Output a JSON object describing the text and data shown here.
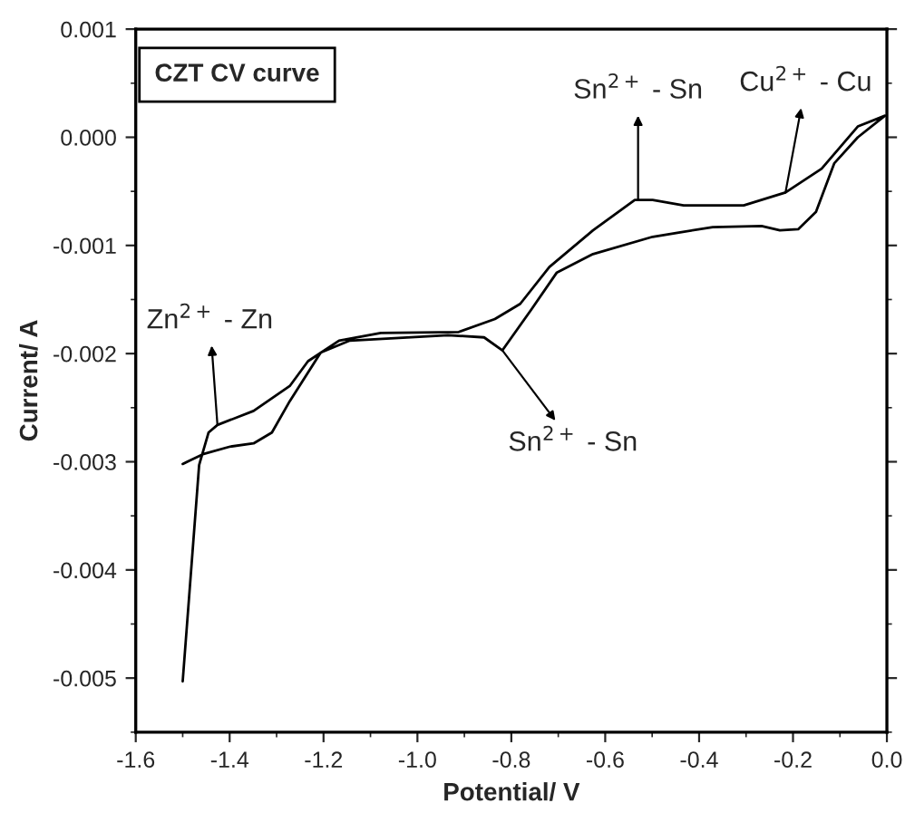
{
  "chart_data": {
    "type": "line",
    "xlabel": "Potential/ V",
    "ylabel": "Current/ A",
    "series": [
      {
        "color": "#000000",
        "x": [
          -1.5,
          -1.465,
          -1.445,
          -1.426,
          -1.349,
          -1.272,
          -1.233,
          -1.167,
          -1.078,
          -0.912,
          -0.835,
          -0.781,
          -0.719,
          -0.626,
          -0.537,
          -0.499,
          -0.433,
          -0.305,
          -0.216,
          -0.139,
          -0.062,
          -0.004,
          -0.062,
          -0.112,
          -0.151,
          -0.189,
          -0.228,
          -0.267,
          -0.371,
          -0.499,
          -0.626,
          -0.703,
          -0.757,
          -0.819,
          -0.858,
          -0.935,
          -1.144,
          -1.206,
          -1.272,
          -1.31,
          -1.349,
          -1.399,
          -1.457,
          -1.5
        ],
        "values": [
          -0.00503,
          -0.00303,
          -0.00273,
          -0.00266,
          -0.00253,
          -0.0023,
          -0.00207,
          -0.00188,
          -0.00181,
          -0.0018,
          -0.00168,
          -0.00154,
          -0.0012,
          -0.00086,
          -0.00058,
          -0.00058,
          -0.00063,
          -0.00063,
          -0.00051,
          -0.00029,
          0.0001,
          0.0002,
          0.0,
          -0.00024,
          -0.00069,
          -0.00085,
          -0.00086,
          -0.00082,
          -0.00083,
          -0.00092,
          -0.00108,
          -0.00125,
          -0.00159,
          -0.00197,
          -0.00185,
          -0.00183,
          -0.00188,
          -0.00199,
          -0.00244,
          -0.00273,
          -0.00283,
          -0.00286,
          -0.00293,
          -0.00302
        ]
      }
    ],
    "xlim": [
      -1.6,
      0.0
    ],
    "xticks": [
      -1.6,
      -1.4,
      -1.2,
      {
        "value": -1.0,
        "label": "-1.0"
      },
      -0.8,
      -0.6,
      -0.4,
      -0.2,
      {
        "value": 0.0,
        "label": "0.0"
      }
    ],
    "ylim": [
      -0.0055,
      0.001
    ],
    "yticks": [
      0.001,
      {
        "value": 0.0,
        "label": "0.000"
      },
      -0.001,
      -0.002,
      -0.003,
      -0.004,
      -0.005
    ],
    "annotations": [
      "CZT CV curve",
      {
        "text": "Zn$^{2+}$ - Zn",
        "x": -1.426,
        "y": -0.00266
      },
      {
        "text": "Sn$^{2+}$ - Sn",
        "x": -0.53,
        "y": -0.00058
      },
      {
        "text": "Cu$^{2+}$ - Cu",
        "x": -0.216,
        "y": -0.00051
      },
      {
        "text": "Sn$^{2+}$ - Sn",
        "x": -0.819,
        "y": -0.00197
      }
    ],
    "grid": false,
    "legend": false,
    "marker": "none",
    "line_style": "solid"
  }
}
